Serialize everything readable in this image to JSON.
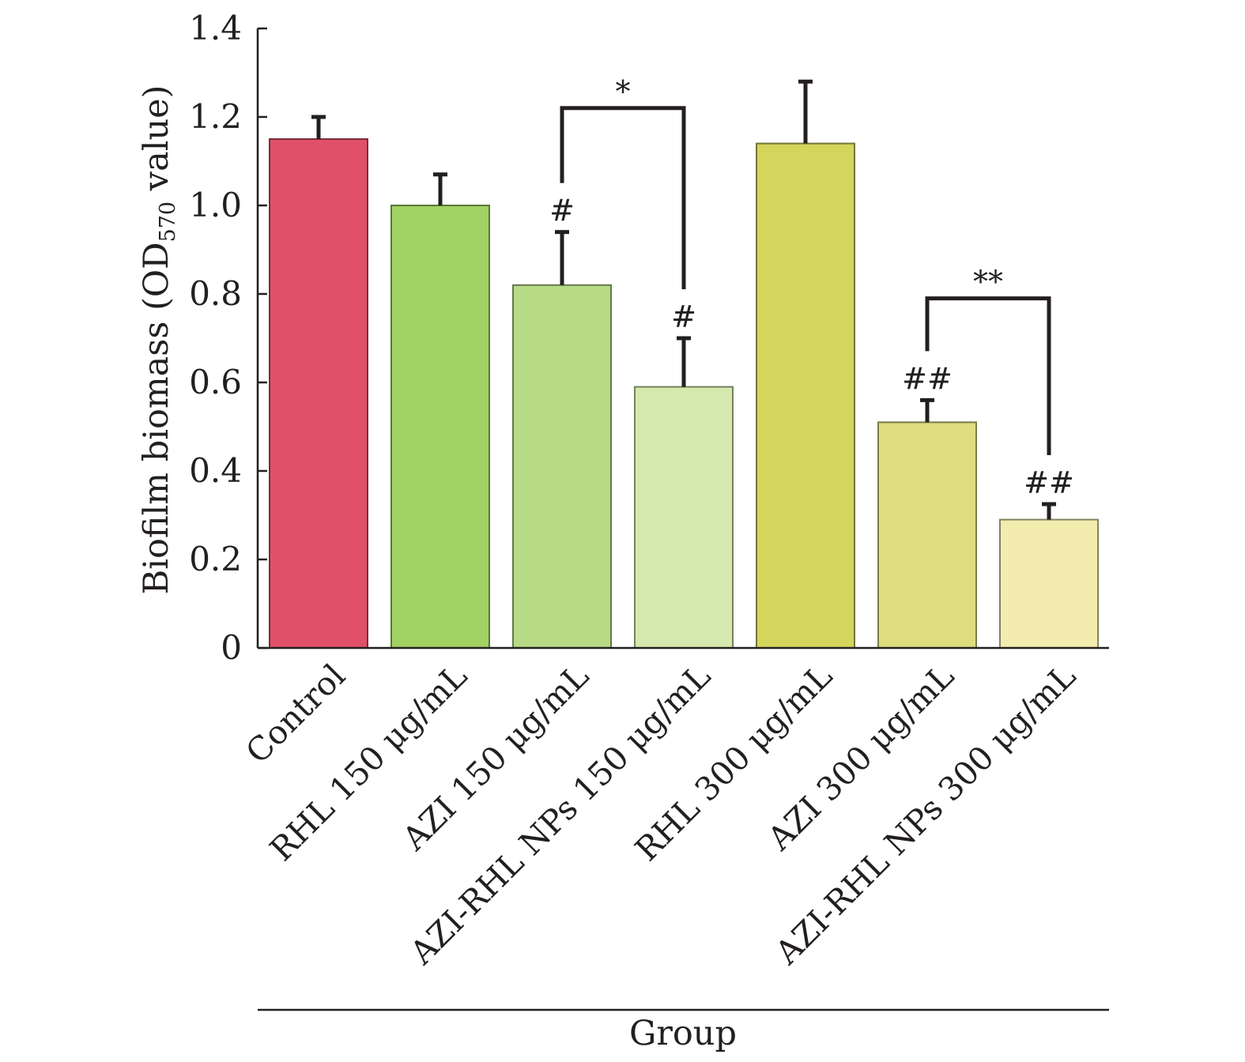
{
  "chart_data": {
    "type": "bar",
    "xlabel": "Group",
    "ylabel_parts": [
      "Biofilm biomass (OD",
      "570",
      " value)"
    ],
    "ylim": [
      0,
      1.4
    ],
    "yticks": [
      0,
      0.2,
      0.4,
      0.6,
      0.8,
      1.0,
      1.2,
      1.4
    ],
    "ytick_labels": [
      "0",
      "0.2",
      "0.4",
      "0.6",
      "0.8",
      "1.0",
      "1.2",
      "1.4"
    ],
    "categories": [
      "Control",
      "RHL 150 μg/mL",
      "AZI 150 μg/mL",
      "AZI-RHL NPs 150 μg/mL",
      "RHL 300 μg/mL",
      "AZI 300 μg/mL",
      "AZI-RHL NPs 300 μg/mL"
    ],
    "values": [
      1.15,
      1.0,
      0.82,
      0.59,
      1.14,
      0.51,
      0.29
    ],
    "errors": [
      0.05,
      0.07,
      0.12,
      0.11,
      0.14,
      0.05,
      0.035
    ],
    "colors": [
      "#e05068",
      "#a2d263",
      "#b6da86",
      "#d5e9ae",
      "#d3d55d",
      "#dedd7f",
      "#f2edae"
    ],
    "bar_annotations": [
      "",
      "",
      "#",
      "#",
      "",
      "##",
      "##"
    ],
    "comparisons": [
      {
        "from": 2,
        "to": 3,
        "label": "*",
        "level": 1.22
      },
      {
        "from": 5,
        "to": 6,
        "label": "**",
        "level": 0.79
      }
    ],
    "grid": false,
    "legend": "none"
  }
}
